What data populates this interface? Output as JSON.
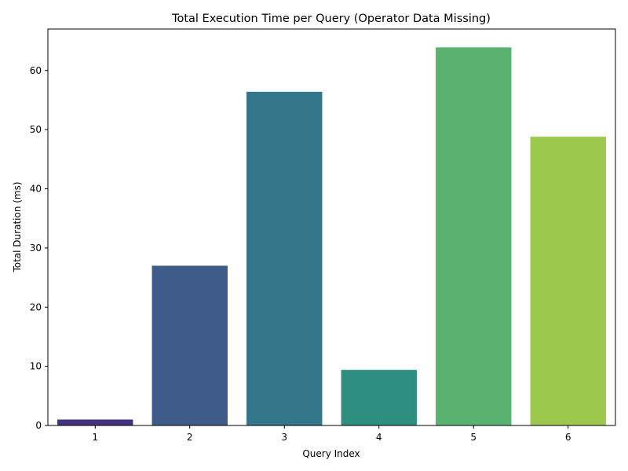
{
  "chart_data": {
    "type": "bar",
    "title": "Total Execution Time per Query (Operator Data Missing)",
    "xlabel": "Query Index",
    "ylabel": "Total Duration (ms)",
    "categories": [
      "1",
      "2",
      "3",
      "4",
      "5",
      "6"
    ],
    "values": [
      1.0,
      27.0,
      56.4,
      9.4,
      63.9,
      48.8
    ],
    "colors": [
      "#46327e",
      "#3e5b8a",
      "#33768a",
      "#2e8f80",
      "#5ab270",
      "#9cc84d"
    ],
    "ylim": [
      0,
      67
    ],
    "yticks": [
      0,
      10,
      20,
      30,
      40,
      50,
      60
    ],
    "grid": false,
    "legend": "none"
  }
}
